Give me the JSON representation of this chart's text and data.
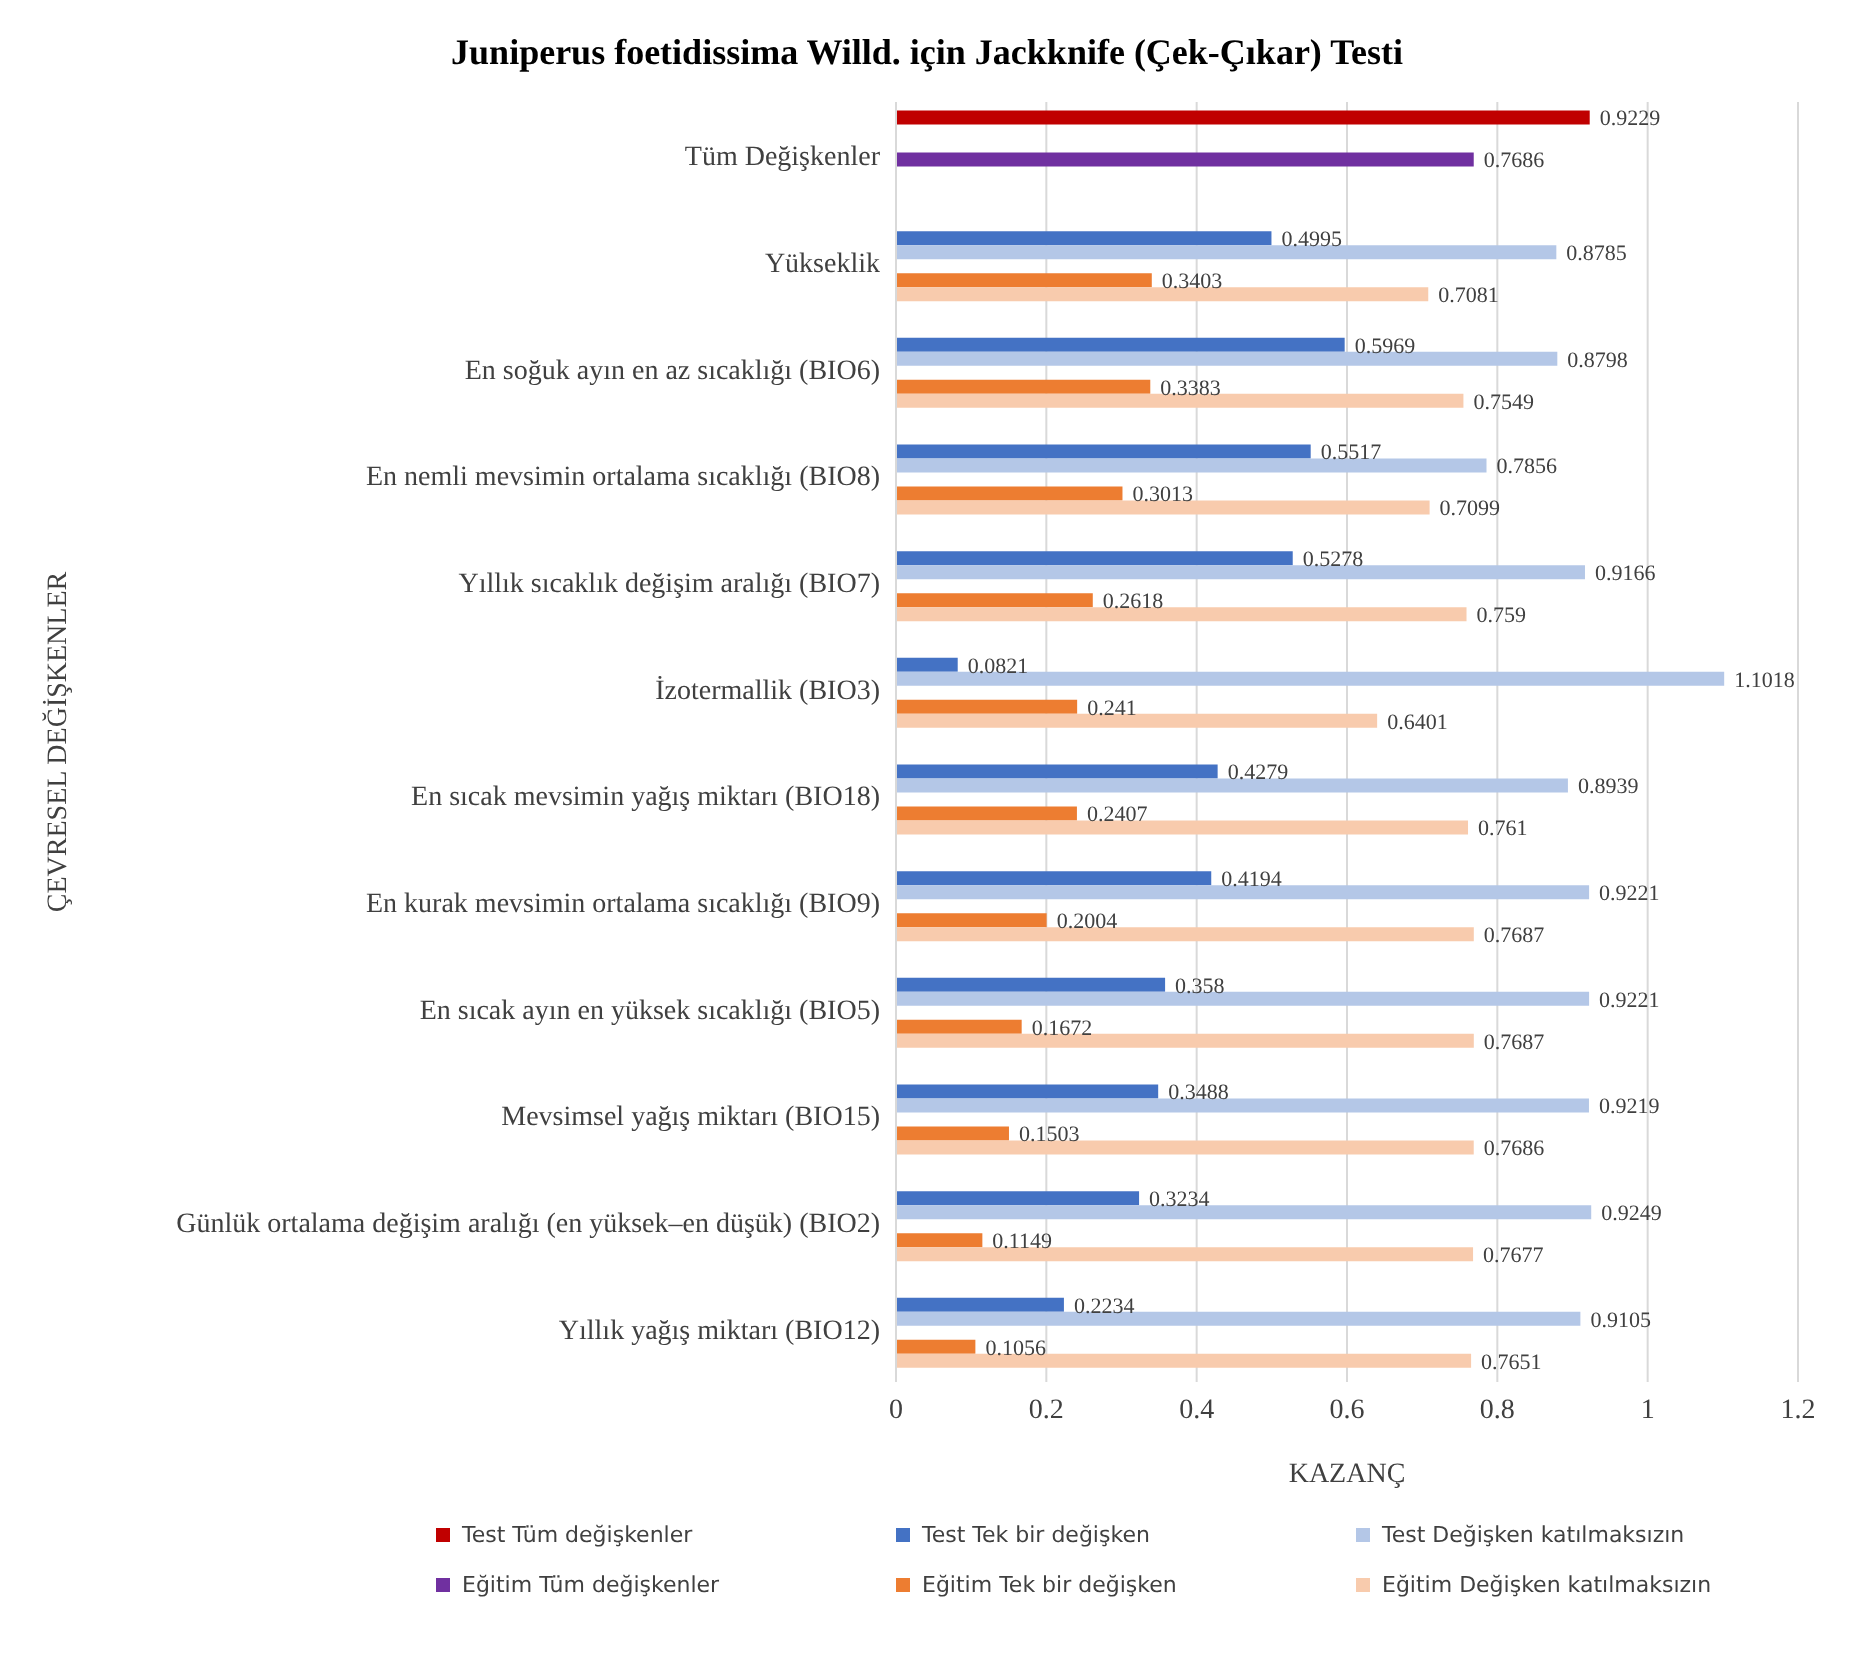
{
  "chart_data": {
    "type": "bar",
    "orientation": "horizontal",
    "title": "Juniperus foetidissima Willd. için Jackknife (Çek-Çıkar) Testi",
    "xlabel": "KAZANÇ",
    "ylabel": "ÇEVRESEL DEĞİŞKENLER",
    "categories": [
      "Tüm Değişkenler",
      "Yükseklik",
      "En soğuk ayın en az sıcaklığı (BIO6)",
      "En nemli mevsimin ortalama sıcaklığı (BIO8)",
      "Yıllık sıcaklık değişim aralığı (BIO7)",
      "İzotermallik (BIO3)",
      "En sıcak mevsimin yağış miktarı (BIO18)",
      "En kurak mevsimin ortalama sıcaklığı (BIO9)",
      "En sıcak ayın en yüksek sıcaklığı (BIO5)",
      "Mevsimsel yağış miktarı (BIO15)",
      "Günlük ortalama değişim aralığı  (en yüksek–en düşük) (BIO2)",
      "Yıllık yağış miktarı (BIO12)"
    ],
    "series": [
      {
        "name": "Test Tüm değişkenler",
        "color": "#c00000",
        "values": [
          0.9229,
          null,
          null,
          null,
          null,
          null,
          null,
          null,
          null,
          null,
          null,
          null
        ]
      },
      {
        "name": "Test Tek bir değişken",
        "color": "#4472c4",
        "values": [
          null,
          0.4995,
          0.5969,
          0.5517,
          0.5278,
          0.0821,
          0.4279,
          0.4194,
          0.358,
          0.3488,
          0.3234,
          0.2234
        ]
      },
      {
        "name": "Test Değişken katılmaksızın",
        "color": "#b4c7e7",
        "values": [
          null,
          0.8785,
          0.8798,
          0.7856,
          0.9166,
          1.1018,
          0.8939,
          0.9221,
          0.9221,
          0.9219,
          0.9249,
          0.9105
        ]
      },
      {
        "name": "Eğitim Tüm değişkenler",
        "color": "#7030a0",
        "values": [
          0.7686,
          null,
          null,
          null,
          null,
          null,
          null,
          null,
          null,
          null,
          null,
          null
        ]
      },
      {
        "name": "Eğitim Tek bir değişken",
        "color": "#ed7d31",
        "values": [
          null,
          0.3403,
          0.3383,
          0.3013,
          0.2618,
          0.241,
          0.2407,
          0.2004,
          0.1672,
          0.1503,
          0.1149,
          0.1056
        ]
      },
      {
        "name": "Eğitim Değişken katılmaksızın",
        "color": "#f8cbad",
        "values": [
          null,
          0.7081,
          0.7549,
          0.7099,
          0.759,
          0.6401,
          0.761,
          0.7687,
          0.7687,
          0.7686,
          0.7677,
          0.7651
        ]
      }
    ],
    "xlim": [
      0,
      1.2
    ],
    "xticks": [
      0,
      0.2,
      0.4,
      0.6,
      0.8,
      1,
      1.2
    ],
    "grid": "x",
    "legend": "bottom",
    "data_labels": true
  }
}
